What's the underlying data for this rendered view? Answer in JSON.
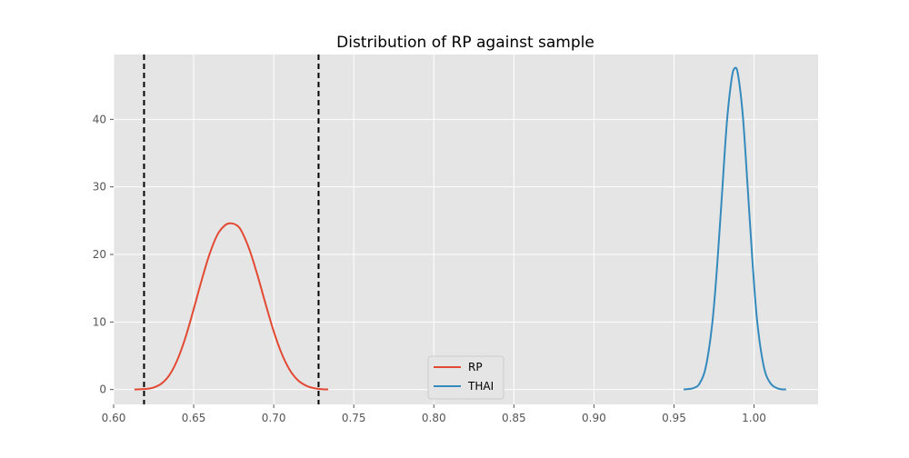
{
  "chart_data": {
    "type": "line",
    "title": "Distribution of RP against sample",
    "xlabel": "",
    "ylabel": "",
    "xlim": [
      0.6,
      1.04
    ],
    "ylim": [
      -2.2,
      49.6
    ],
    "xticks": [
      0.6,
      0.65,
      0.7,
      0.75,
      0.8,
      0.85,
      0.9,
      0.95,
      1.0
    ],
    "xtick_labels": [
      "0.60",
      "0.65",
      "0.70",
      "0.75",
      "0.80",
      "0.85",
      "0.90",
      "0.95",
      "1.00"
    ],
    "yticks": [
      0,
      10,
      20,
      30,
      40
    ],
    "ytick_labels": [
      "0",
      "10",
      "20",
      "30",
      "40"
    ],
    "grid": true,
    "legend_position": "bottom-center",
    "series": [
      {
        "name": "RP",
        "color": "#E24A33",
        "x": [
          0.613,
          0.62,
          0.625,
          0.63,
          0.635,
          0.64,
          0.645,
          0.65,
          0.655,
          0.66,
          0.665,
          0.67,
          0.6735,
          0.677,
          0.68,
          0.685,
          0.69,
          0.695,
          0.7,
          0.705,
          0.71,
          0.715,
          0.72,
          0.725,
          0.73,
          0.734
        ],
        "y": [
          0.01,
          0.08,
          0.3,
          0.9,
          2.2,
          4.5,
          7.8,
          11.9,
          16.2,
          20.1,
          23.0,
          24.4,
          24.6,
          24.3,
          23.4,
          20.6,
          16.8,
          12.6,
          8.6,
          5.3,
          2.9,
          1.4,
          0.6,
          0.2,
          0.06,
          0.02
        ]
      },
      {
        "name": "THAI",
        "color": "#348ABD",
        "x": [
          0.956,
          0.962,
          0.966,
          0.97,
          0.974,
          0.977,
          0.98,
          0.983,
          0.986,
          0.988,
          0.99,
          0.993,
          0.996,
          0.999,
          1.002,
          1.006,
          1.01,
          1.015,
          1.02
        ],
        "y": [
          0.02,
          0.2,
          0.9,
          3.5,
          10.0,
          18.5,
          29.0,
          39.5,
          46.0,
          47.6,
          46.6,
          40.5,
          30.0,
          19.0,
          10.0,
          3.5,
          1.0,
          0.15,
          0.01
        ]
      }
    ],
    "reference_lines": [
      {
        "axis": "x",
        "value": 0.619,
        "style": "dashed",
        "color": "#000000"
      },
      {
        "axis": "x",
        "value": 0.728,
        "style": "dashed",
        "color": "#000000"
      }
    ]
  },
  "colors": {
    "plot_background": "#E5E5E5",
    "grid": "#FFFFFF",
    "page_background": "#FFFFFF"
  }
}
